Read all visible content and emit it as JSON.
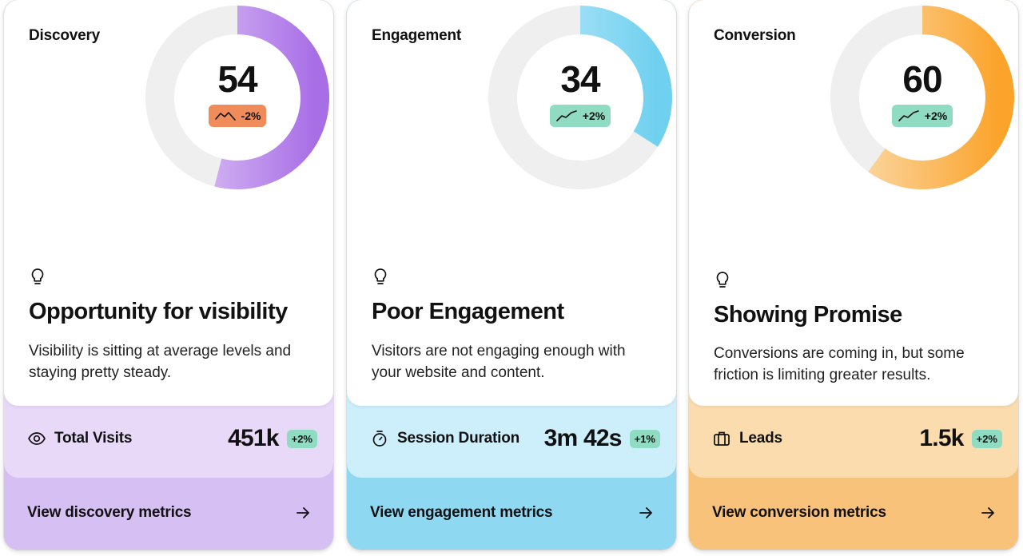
{
  "cards": [
    {
      "title": "Discovery",
      "score": "54",
      "trend": "-2%",
      "trend_direction": "down",
      "ring_fraction": 0.54,
      "ring_colors": [
        "#e4cff8",
        "#a86ee6"
      ],
      "headline": "Opportunity for visibility",
      "description": "Visibility is sitting at average levels and staying pretty steady.",
      "metric": {
        "icon": "eye-icon",
        "label": "Total Visits",
        "value": "451k",
        "delta": "+2%"
      },
      "cta": "View discovery metrics"
    },
    {
      "title": "Engagement",
      "score": "34",
      "trend": "+2%",
      "trend_direction": "up",
      "ring_fraction": 0.34,
      "ring_colors": [
        "#c6ecfb",
        "#6fd0ef"
      ],
      "headline": "Poor Engagement",
      "description": "Visitors are not engaging enough with your website and content.",
      "metric": {
        "icon": "stopwatch-icon",
        "label": "Session Duration",
        "value": "3m 42s",
        "delta": "+1%"
      },
      "cta": "View engagement metrics"
    },
    {
      "title": "Conversion",
      "score": "60",
      "trend": "+2%",
      "trend_direction": "up",
      "ring_fraction": 0.6,
      "ring_colors": [
        "#fbdcae",
        "#fba32a"
      ],
      "headline": "Showing Promise",
      "description": "Conversions are coming in, but some friction is limiting greater results.",
      "metric": {
        "icon": "briefcase-icon",
        "label": "Leads",
        "value": "1.5k",
        "delta": "+2%"
      },
      "cta": "View conversion metrics"
    }
  ]
}
